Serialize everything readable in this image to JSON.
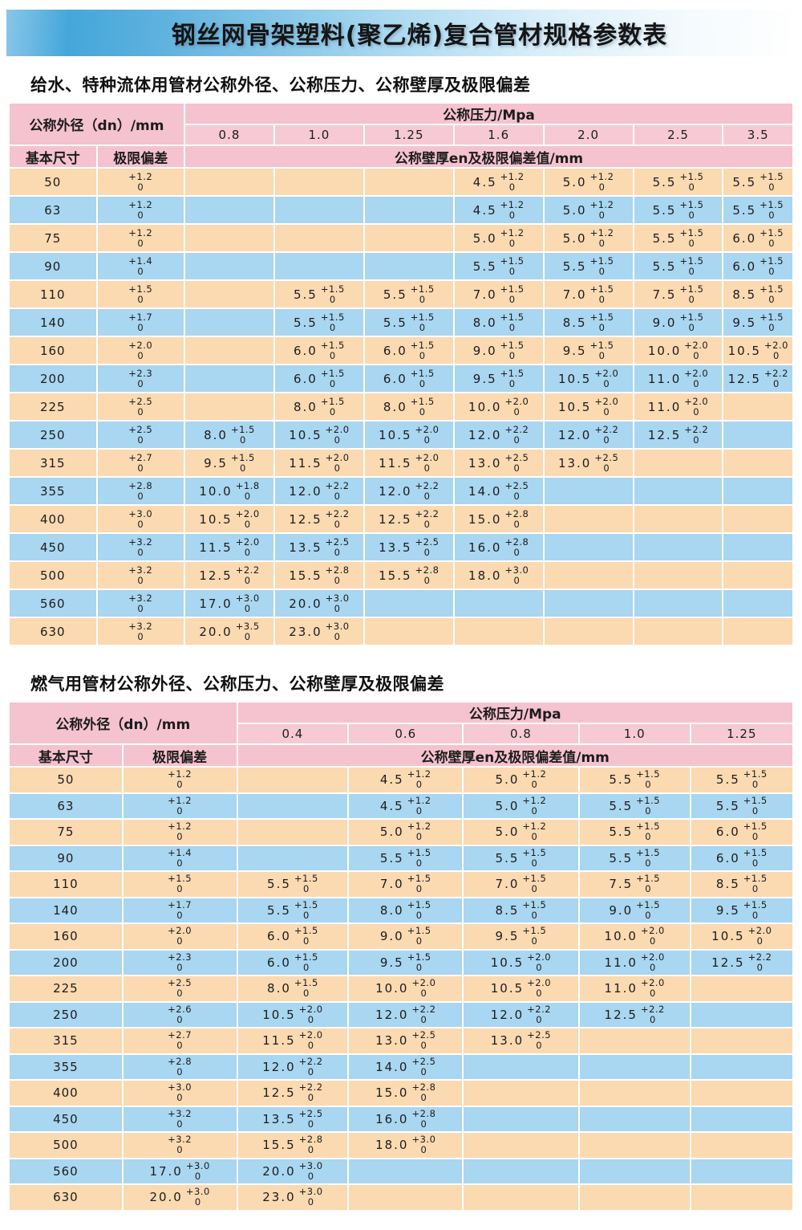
{
  "banner": {
    "title": "钢丝网骨架塑料(聚乙烯)复合管材规格参数表"
  },
  "water_table": {
    "section_title": "给水、特种流体用管材公称外径、公称压力、公称壁厚及极限偏差",
    "header": {
      "outer_diameter_label": "公称外径（dn）/mm",
      "pressure_label": "公称压力/Mpa",
      "pressures": [
        "0.8",
        "1.0",
        "1.25",
        "1.6",
        "2.0",
        "2.5",
        "3.5"
      ],
      "basic_size_label": "基本尺寸",
      "deviation_label": "极限偏差",
      "wall_label": "公称壁厚en及极限偏差值/mm"
    },
    "rows": [
      {
        "dn": "50",
        "dev": {
          "t": "+1.2",
          "b": "0"
        },
        "cells": [
          null,
          null,
          null,
          {
            "v": "4.5",
            "t": "+1.2",
            "b": "0"
          },
          {
            "v": "5.0",
            "t": "+1.2",
            "b": "0"
          },
          {
            "v": "5.5",
            "t": "+1.5",
            "b": "0"
          },
          {
            "v": "5.5",
            "t": "+1.5",
            "b": "0"
          }
        ]
      },
      {
        "dn": "63",
        "dev": {
          "t": "+1.2",
          "b": "0"
        },
        "cells": [
          null,
          null,
          null,
          {
            "v": "4.5",
            "t": "+1.2",
            "b": "0"
          },
          {
            "v": "5.0",
            "t": "+1.2",
            "b": "0"
          },
          {
            "v": "5.5",
            "t": "+1.5",
            "b": "0"
          },
          {
            "v": "5.5",
            "t": "+1.5",
            "b": "0"
          }
        ]
      },
      {
        "dn": "75",
        "dev": {
          "t": "+1.2",
          "b": "0"
        },
        "cells": [
          null,
          null,
          null,
          {
            "v": "5.0",
            "t": "+1.2",
            "b": "0"
          },
          {
            "v": "5.0",
            "t": "+1.2",
            "b": "0"
          },
          {
            "v": "5.5",
            "t": "+1.5",
            "b": "0"
          },
          {
            "v": "6.0",
            "t": "+1.5",
            "b": "0"
          }
        ]
      },
      {
        "dn": "90",
        "dev": {
          "t": "+1.4",
          "b": "0"
        },
        "cells": [
          null,
          null,
          null,
          {
            "v": "5.5",
            "t": "+1.5",
            "b": "0"
          },
          {
            "v": "5.5",
            "t": "+1.5",
            "b": "0"
          },
          {
            "v": "5.5",
            "t": "+1.5",
            "b": "0"
          },
          {
            "v": "6.0",
            "t": "+1.5",
            "b": "0"
          }
        ]
      },
      {
        "dn": "110",
        "dev": {
          "t": "+1.5",
          "b": "0"
        },
        "cells": [
          null,
          {
            "v": "5.5",
            "t": "+1.5",
            "b": "0"
          },
          {
            "v": "5.5",
            "t": "+1.5",
            "b": "0"
          },
          {
            "v": "7.0",
            "t": "+1.5",
            "b": "0"
          },
          {
            "v": "7.0",
            "t": "+1.5",
            "b": "0"
          },
          {
            "v": "7.5",
            "t": "+1.5",
            "b": "0"
          },
          {
            "v": "8.5",
            "t": "+1.5",
            "b": "0"
          }
        ]
      },
      {
        "dn": "140",
        "dev": {
          "t": "+1.7",
          "b": "0"
        },
        "cells": [
          null,
          {
            "v": "5.5",
            "t": "+1.5",
            "b": "0"
          },
          {
            "v": "5.5",
            "t": "+1.5",
            "b": "0"
          },
          {
            "v": "8.0",
            "t": "+1.5",
            "b": "0"
          },
          {
            "v": "8.5",
            "t": "+1.5",
            "b": "0"
          },
          {
            "v": "9.0",
            "t": "+1.5",
            "b": "0"
          },
          {
            "v": "9.5",
            "t": "+1.5",
            "b": "0"
          }
        ]
      },
      {
        "dn": "160",
        "dev": {
          "t": "+2.0",
          "b": "0"
        },
        "cells": [
          null,
          {
            "v": "6.0",
            "t": "+1.5",
            "b": "0"
          },
          {
            "v": "6.0",
            "t": "+1.5",
            "b": "0"
          },
          {
            "v": "9.0",
            "t": "+1.5",
            "b": "0"
          },
          {
            "v": "9.5",
            "t": "+1.5",
            "b": "0"
          },
          {
            "v": "10.0",
            "t": "+2.0",
            "b": "0"
          },
          {
            "v": "10.5",
            "t": "+2.0",
            "b": "0"
          }
        ]
      },
      {
        "dn": "200",
        "dev": {
          "t": "+2.3",
          "b": "0"
        },
        "cells": [
          null,
          {
            "v": "6.0",
            "t": "+1.5",
            "b": "0"
          },
          {
            "v": "6.0",
            "t": "+1.5",
            "b": "0"
          },
          {
            "v": "9.5",
            "t": "+1.5",
            "b": "0"
          },
          {
            "v": "10.5",
            "t": "+2.0",
            "b": "0"
          },
          {
            "v": "11.0",
            "t": "+2.0",
            "b": "0"
          },
          {
            "v": "12.5",
            "t": "+2.2",
            "b": "0"
          }
        ]
      },
      {
        "dn": "225",
        "dev": {
          "t": "+2.5",
          "b": "0"
        },
        "cells": [
          null,
          {
            "v": "8.0",
            "t": "+1.5",
            "b": "0"
          },
          {
            "v": "8.0",
            "t": "+1.5",
            "b": "0"
          },
          {
            "v": "10.0",
            "t": "+2.0",
            "b": "0"
          },
          {
            "v": "10.5",
            "t": "+2.0",
            "b": "0"
          },
          {
            "v": "11.0",
            "t": "+2.0",
            "b": "0"
          },
          null
        ]
      },
      {
        "dn": "250",
        "dev": {
          "t": "+2.5",
          "b": "0"
        },
        "cells": [
          {
            "v": "8.0",
            "t": "+1.5",
            "b": "0"
          },
          {
            "v": "10.5",
            "t": "+2.0",
            "b": "0"
          },
          {
            "v": "10.5",
            "t": "+2.0",
            "b": "0"
          },
          {
            "v": "12.0",
            "t": "+2.2",
            "b": "0"
          },
          {
            "v": "12.0",
            "t": "+2.2",
            "b": "0"
          },
          {
            "v": "12.5",
            "t": "+2.2",
            "b": "0"
          },
          null
        ]
      },
      {
        "dn": "315",
        "dev": {
          "t": "+2.7",
          "b": "0"
        },
        "cells": [
          {
            "v": "9.5",
            "t": "+1.5",
            "b": "0"
          },
          {
            "v": "11.5",
            "t": "+2.0",
            "b": "0"
          },
          {
            "v": "11.5",
            "t": "+2.0",
            "b": "0"
          },
          {
            "v": "13.0",
            "t": "+2.5",
            "b": "0"
          },
          {
            "v": "13.0",
            "t": "+2.5",
            "b": "0"
          },
          null,
          null
        ]
      },
      {
        "dn": "355",
        "dev": {
          "t": "+2.8",
          "b": "0"
        },
        "cells": [
          {
            "v": "10.0",
            "t": "+1.8",
            "b": "0"
          },
          {
            "v": "12.0",
            "t": "+2.2",
            "b": "0"
          },
          {
            "v": "12.0",
            "t": "+2.2",
            "b": "0"
          },
          {
            "v": "14.0",
            "t": "+2.5",
            "b": "0"
          },
          null,
          null,
          null
        ]
      },
      {
        "dn": "400",
        "dev": {
          "t": "+3.0",
          "b": "0"
        },
        "cells": [
          {
            "v": "10.5",
            "t": "+2.0",
            "b": "0"
          },
          {
            "v": "12.5",
            "t": "+2.2",
            "b": "0"
          },
          {
            "v": "12.5",
            "t": "+2.2",
            "b": "0"
          },
          {
            "v": "15.0",
            "t": "+2.8",
            "b": "0"
          },
          null,
          null,
          null
        ]
      },
      {
        "dn": "450",
        "dev": {
          "t": "+3.2",
          "b": "0"
        },
        "cells": [
          {
            "v": "11.5",
            "t": "+2.0",
            "b": "0"
          },
          {
            "v": "13.5",
            "t": "+2.5",
            "b": "0"
          },
          {
            "v": "13.5",
            "t": "+2.5",
            "b": "0"
          },
          {
            "v": "16.0",
            "t": "+2.8",
            "b": "0"
          },
          null,
          null,
          null
        ]
      },
      {
        "dn": "500",
        "dev": {
          "t": "+3.2",
          "b": "0"
        },
        "cells": [
          {
            "v": "12.5",
            "t": "+2.2",
            "b": "0"
          },
          {
            "v": "15.5",
            "t": "+2.8",
            "b": "0"
          },
          {
            "v": "15.5",
            "t": "+2.8",
            "b": "0"
          },
          {
            "v": "18.0",
            "t": "+3.0",
            "b": "0"
          },
          null,
          null,
          null
        ]
      },
      {
        "dn": "560",
        "dev": {
          "t": "+3.2",
          "b": "0"
        },
        "cells": [
          {
            "v": "17.0",
            "t": "+3.0",
            "b": "0"
          },
          {
            "v": "20.0",
            "t": "+3.0",
            "b": "0"
          },
          null,
          null,
          null,
          null,
          null
        ]
      },
      {
        "dn": "630",
        "dev": {
          "t": "+3.2",
          "b": "0"
        },
        "cells": [
          {
            "v": "20.0",
            "t": "+3.5",
            "b": "0"
          },
          {
            "v": "23.0",
            "t": "+3.0",
            "b": "0"
          },
          null,
          null,
          null,
          null,
          null
        ]
      }
    ]
  },
  "gas_table": {
    "section_title": "燃气用管材公称外径、公称压力、公称壁厚及极限偏差",
    "header": {
      "outer_diameter_label": "公称外径（dn）/mm",
      "pressure_label": "公称压力/Mpa",
      "pressures": [
        "0.4",
        "0.6",
        "0.8",
        "1.0",
        "1.25"
      ],
      "basic_size_label": "基本尺寸",
      "deviation_label": "极限偏差",
      "wall_label": "公称壁厚en及极限偏差值/mm"
    },
    "rows": [
      {
        "dn": "50",
        "dev": {
          "t": "+1.2",
          "b": "0"
        },
        "cells": [
          null,
          {
            "v": "4.5",
            "t": "+1.2",
            "b": "0"
          },
          {
            "v": "5.0",
            "t": "+1.2",
            "b": "0"
          },
          {
            "v": "5.5",
            "t": "+1.5",
            "b": "0"
          },
          {
            "v": "5.5",
            "t": "+1.5",
            "b": "0"
          }
        ]
      },
      {
        "dn": "63",
        "dev": {
          "t": "+1.2",
          "b": "0"
        },
        "cells": [
          null,
          {
            "v": "4.5",
            "t": "+1.2",
            "b": "0"
          },
          {
            "v": "5.0",
            "t": "+1.2",
            "b": "0"
          },
          {
            "v": "5.5",
            "t": "+1.5",
            "b": "0"
          },
          {
            "v": "5.5",
            "t": "+1.5",
            "b": "0"
          }
        ]
      },
      {
        "dn": "75",
        "dev": {
          "t": "+1.2",
          "b": "0"
        },
        "cells": [
          null,
          {
            "v": "5.0",
            "t": "+1.2",
            "b": "0"
          },
          {
            "v": "5.0",
            "t": "+1.2",
            "b": "0"
          },
          {
            "v": "5.5",
            "t": "+1.5",
            "b": "0"
          },
          {
            "v": "6.0",
            "t": "+1.5",
            "b": "0"
          }
        ]
      },
      {
        "dn": "90",
        "dev": {
          "t": "+1.4",
          "b": "0"
        },
        "cells": [
          null,
          {
            "v": "5.5",
            "t": "+1.5",
            "b": "0"
          },
          {
            "v": "5.5",
            "t": "+1.5",
            "b": "0"
          },
          {
            "v": "5.5",
            "t": "+1.5",
            "b": "0"
          },
          {
            "v": "6.0",
            "t": "+1.5",
            "b": "0"
          }
        ]
      },
      {
        "dn": "110",
        "dev": {
          "t": "+1.5",
          "b": "0"
        },
        "cells": [
          {
            "v": "5.5",
            "t": "+1.5",
            "b": "0"
          },
          {
            "v": "7.0",
            "t": "+1.5",
            "b": "0"
          },
          {
            "v": "7.0",
            "t": "+1.5",
            "b": "0"
          },
          {
            "v": "7.5",
            "t": "+1.5",
            "b": "0"
          },
          {
            "v": "8.5",
            "t": "+1.5",
            "b": "0"
          }
        ]
      },
      {
        "dn": "140",
        "dev": {
          "t": "+1.7",
          "b": "0"
        },
        "cells": [
          {
            "v": "5.5",
            "t": "+1.5",
            "b": "0"
          },
          {
            "v": "8.0",
            "t": "+1.5",
            "b": "0"
          },
          {
            "v": "8.5",
            "t": "+1.5",
            "b": "0"
          },
          {
            "v": "9.0",
            "t": "+1.5",
            "b": "0"
          },
          {
            "v": "9.5",
            "t": "+1.5",
            "b": "0"
          }
        ]
      },
      {
        "dn": "160",
        "dev": {
          "t": "+2.0",
          "b": "0"
        },
        "cells": [
          {
            "v": "6.0",
            "t": "+1.5",
            "b": "0"
          },
          {
            "v": "9.0",
            "t": "+1.5",
            "b": "0"
          },
          {
            "v": "9.5",
            "t": "+1.5",
            "b": "0"
          },
          {
            "v": "10.0",
            "t": "+2.0",
            "b": "0"
          },
          {
            "v": "10.5",
            "t": "+2.0",
            "b": "0"
          }
        ]
      },
      {
        "dn": "200",
        "dev": {
          "t": "+2.3",
          "b": "0"
        },
        "cells": [
          {
            "v": "6.0",
            "t": "+1.5",
            "b": "0"
          },
          {
            "v": "9.5",
            "t": "+1.5",
            "b": "0"
          },
          {
            "v": "10.5",
            "t": "+2.0",
            "b": "0"
          },
          {
            "v": "11.0",
            "t": "+2.0",
            "b": "0"
          },
          {
            "v": "12.5",
            "t": "+2.2",
            "b": "0"
          }
        ]
      },
      {
        "dn": "225",
        "dev": {
          "t": "+2.5",
          "b": "0"
        },
        "cells": [
          {
            "v": "8.0",
            "t": "+1.5",
            "b": "0"
          },
          {
            "v": "10.0",
            "t": "+2.0",
            "b": "0"
          },
          {
            "v": "10.5",
            "t": "+2.0",
            "b": "0"
          },
          {
            "v": "11.0",
            "t": "+2.0",
            "b": "0"
          },
          null
        ]
      },
      {
        "dn": "250",
        "dev": {
          "t": "+2.6",
          "b": "0"
        },
        "cells": [
          {
            "v": "10.5",
            "t": "+2.0",
            "b": "0"
          },
          {
            "v": "12.0",
            "t": "+2.2",
            "b": "0"
          },
          {
            "v": "12.0",
            "t": "+2.2",
            "b": "0"
          },
          {
            "v": "12.5",
            "t": "+2.2",
            "b": "0"
          },
          null
        ]
      },
      {
        "dn": "315",
        "dev": {
          "t": "+2.7",
          "b": "0"
        },
        "cells": [
          {
            "v": "11.5",
            "t": "+2.0",
            "b": "0"
          },
          {
            "v": "13.0",
            "t": "+2.5",
            "b": "0"
          },
          {
            "v": "13.0",
            "t": "+2.5",
            "b": "0"
          },
          null,
          null
        ]
      },
      {
        "dn": "355",
        "dev": {
          "t": "+2.8",
          "b": "0"
        },
        "cells": [
          {
            "v": "12.0",
            "t": "+2.2",
            "b": "0"
          },
          {
            "v": "14.0",
            "t": "+2.5",
            "b": "0"
          },
          null,
          null,
          null
        ]
      },
      {
        "dn": "400",
        "dev": {
          "t": "+3.0",
          "b": "0"
        },
        "cells": [
          {
            "v": "12.5",
            "t": "+2.2",
            "b": "0"
          },
          {
            "v": "15.0",
            "t": "+2.8",
            "b": "0"
          },
          null,
          null,
          null
        ]
      },
      {
        "dn": "450",
        "dev": {
          "t": "+3.2",
          "b": "0"
        },
        "cells": [
          {
            "v": "13.5",
            "t": "+2.5",
            "b": "0"
          },
          {
            "v": "16.0",
            "t": "+2.8",
            "b": "0"
          },
          null,
          null,
          null
        ]
      },
      {
        "dn": "500",
        "dev": {
          "t": "+3.2",
          "b": "0"
        },
        "cells": [
          {
            "v": "15.5",
            "t": "+2.8",
            "b": "0"
          },
          {
            "v": "18.0",
            "t": "+3.0",
            "b": "0"
          },
          null,
          null,
          null
        ]
      },
      {
        "dn": "560",
        "dev": {
          "v": "17.0",
          "t": "+3.0",
          "b": "0"
        },
        "cells": [
          {
            "v": "20.0",
            "t": "+3.0",
            "b": "0"
          },
          null,
          null,
          null,
          null
        ]
      },
      {
        "dn": "630",
        "dev": {
          "v": "20.0",
          "t": "+3.0",
          "b": "0"
        },
        "cells": [
          {
            "v": "23.0",
            "t": "+3.0",
            "b": "0"
          },
          null,
          null,
          null,
          null
        ]
      }
    ]
  },
  "colors": {
    "row_orange": "#fbd9b1",
    "row_blue": "#a9d6f0",
    "header_pink": "#f5c2d0",
    "banner_blue": "#44a7da"
  }
}
